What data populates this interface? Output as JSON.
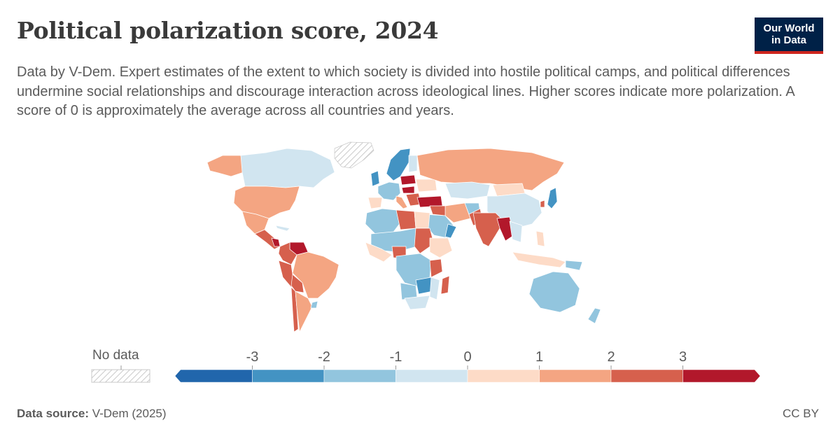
{
  "header": {
    "title": "Political polarization score, 2024",
    "subtitle": "Data by V-Dem. Expert estimates of the extent to which society is divided into hostile political camps, and political differences undermine social relationships and discourage interaction across ideological lines. Higher scores indicate more polarization. A score of 0 is approximately the average across all countries and years."
  },
  "logo": {
    "line1": "Our World",
    "line2": "in Data",
    "bg_color": "#002147",
    "accent_color": "#ce261e"
  },
  "legend": {
    "no_data_label": "No data",
    "ticks": [
      "-3",
      "-2",
      "-1",
      "0",
      "1",
      "2",
      "3"
    ],
    "bins": [
      {
        "range": "< -3",
        "color": "#2166ac"
      },
      {
        "range": "-3 to -2",
        "color": "#4393c3"
      },
      {
        "range": "-2 to -1",
        "color": "#92c5de"
      },
      {
        "range": "-1 to 0",
        "color": "#d1e5f0"
      },
      {
        "range": "0 to 1",
        "color": "#fddbc7"
      },
      {
        "range": "1 to 2",
        "color": "#f4a582"
      },
      {
        "range": "2 to 3",
        "color": "#d6604d"
      },
      {
        "range": "> 3",
        "color": "#b2182b"
      }
    ]
  },
  "footer": {
    "source_label": "Data source:",
    "source_value": "V-Dem (2025)",
    "license": "CC BY"
  }
}
